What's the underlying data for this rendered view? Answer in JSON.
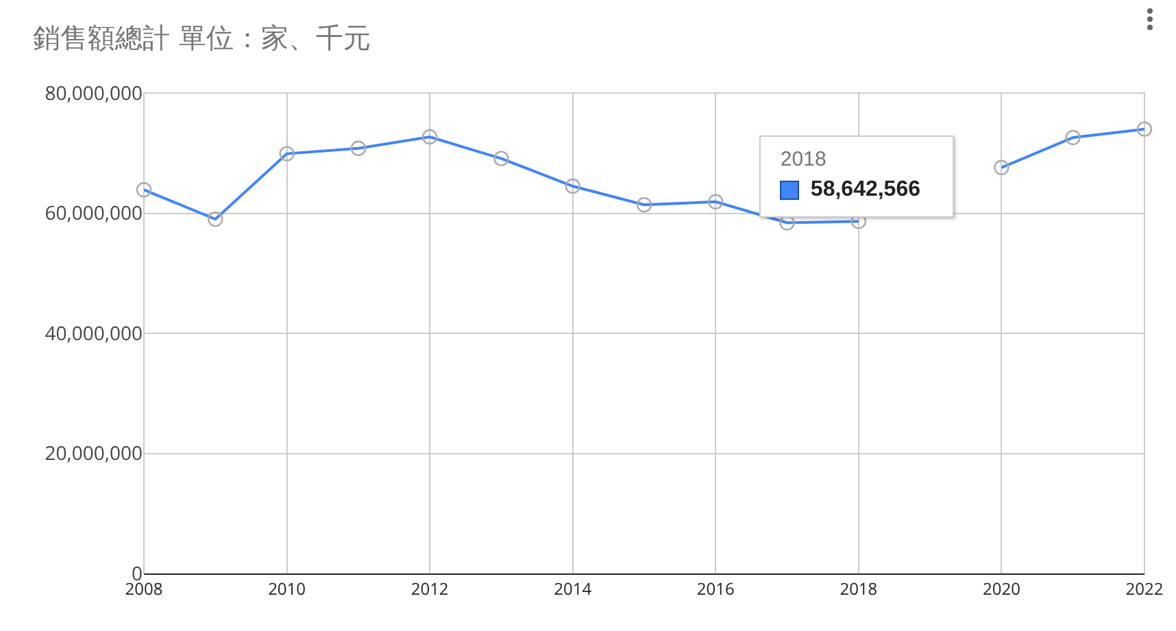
{
  "chart_data": {
    "type": "line",
    "title": "銷售額總計 單位：家、千元",
    "x": [
      2008,
      2009,
      2010,
      2011,
      2012,
      2013,
      2014,
      2015,
      2016,
      2017,
      2018,
      2019,
      2020,
      2021,
      2022
    ],
    "series": [
      {
        "color": "#4285f4",
        "values": [
          63900000,
          59000000,
          69900000,
          70800000,
          72700000,
          69100000,
          64500000,
          61400000,
          61900000,
          58400000,
          58642566,
          null,
          67600000,
          72600000,
          74000000
        ],
        "value_labels": [
          null,
          null,
          null,
          null,
          null,
          null,
          null,
          null,
          null,
          null,
          "58,642,566",
          null,
          null,
          null,
          null
        ]
      }
    ],
    "xlim": [
      2008,
      2022
    ],
    "xticks": [
      2008,
      2010,
      2012,
      2014,
      2016,
      2018,
      2020,
      2022
    ],
    "ylim": [
      0,
      80000000
    ],
    "yticks": [
      {
        "value": 0,
        "label": "0"
      },
      {
        "value": 20000000,
        "label": "20,000,000"
      },
      {
        "value": 40000000,
        "label": "40,000,000"
      },
      {
        "value": 60000000,
        "label": "60,000,000"
      },
      {
        "value": 80000000,
        "label": "80,000,000"
      }
    ],
    "annotations": [
      {
        "text": "2018",
        "x": 2018,
        "y": 58642566
      }
    ],
    "grid": true,
    "marker": "circle",
    "line_style": "solid",
    "legend": false
  }
}
